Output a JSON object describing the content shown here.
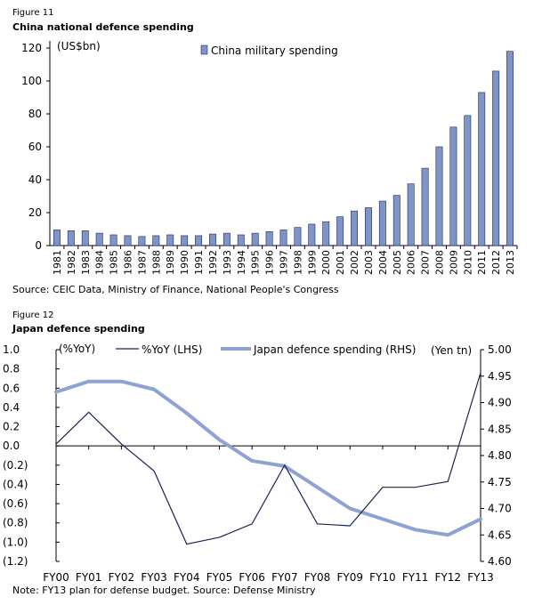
{
  "figure1": {
    "label": "Figure 11",
    "title": "China national defence spending",
    "source": "Source: CEIC Data, Ministry of Finance, National People's Congress"
  },
  "figure2": {
    "label": "Figure 12",
    "title": "Japan defence spending",
    "note": "Note: FY13 plan for defense budget.  Source: Defense Ministry"
  },
  "colors": {
    "bar_fill": "#8194c8",
    "bar_stroke": "#1b2a6b",
    "yoy_line": "#1b2452",
    "spending_line": "#8ea3d3"
  },
  "chart_data": [
    {
      "type": "bar",
      "title": "China national defence spending",
      "ylabel": "(US$bn)",
      "ylim": [
        0,
        120
      ],
      "yticks": [
        "0",
        "20",
        "40",
        "60",
        "80",
        "100",
        "120"
      ],
      "legend": "China military spending",
      "categories": [
        "1981",
        "1982",
        "1983",
        "1984",
        "1985",
        "1986",
        "1987",
        "1988",
        "1989",
        "1990",
        "1991",
        "1992",
        "1993",
        "1994",
        "1995",
        "1996",
        "1997",
        "1998",
        "1999",
        "2000",
        "2001",
        "2002",
        "2003",
        "2004",
        "2005",
        "2006",
        "2007",
        "2008",
        "2009",
        "2010",
        "2011",
        "2012",
        "2013"
      ],
      "values": [
        9.5,
        9,
        9,
        7.5,
        6.5,
        6,
        5.5,
        6,
        6.5,
        6,
        6,
        7,
        7.5,
        6.5,
        7.5,
        8.5,
        9.5,
        11,
        13,
        14.5,
        17.5,
        21,
        23,
        27,
        30.5,
        37.5,
        47,
        60,
        72,
        79,
        93,
        106,
        118
      ]
    },
    {
      "type": "line",
      "title": "Japan defence spending",
      "categories": [
        "FY00",
        "FY01",
        "FY02",
        "FY03",
        "FY04",
        "FY05",
        "FY06",
        "FY07",
        "FY08",
        "FY09",
        "FY10",
        "FY11",
        "FY12",
        "FY13"
      ],
      "left_axis": {
        "label": "(%YoY)",
        "ylim": [
          -1.2,
          1.0
        ],
        "ticks": [
          "1.0",
          "0.8",
          "0.6",
          "0.4",
          "0.2",
          "0.0",
          "(0.2)",
          "(0.4)",
          "(0.6)",
          "(0.8)",
          "(1.0)",
          "(1.2)"
        ]
      },
      "right_axis": {
        "label": "(Yen tn)",
        "ylim": [
          4.6,
          5.0
        ],
        "ticks": [
          "5.00",
          "4.95",
          "4.90",
          "4.85",
          "4.80",
          "4.75",
          "4.70",
          "4.65",
          "4.60"
        ]
      },
      "series": [
        {
          "name": "%YoY (LHS)",
          "axis": "left",
          "values": [
            0.02,
            0.35,
            0.02,
            -0.26,
            -1.02,
            -0.95,
            -0.81,
            -0.2,
            -0.81,
            -0.83,
            -0.43,
            -0.43,
            -0.37,
            0.76
          ]
        },
        {
          "name": "Japan defence spending (RHS)",
          "axis": "right",
          "values": [
            4.92,
            4.94,
            4.94,
            4.925,
            4.88,
            4.83,
            4.79,
            4.78,
            4.74,
            4.7,
            4.68,
            4.66,
            4.65,
            4.68
          ]
        }
      ]
    }
  ]
}
